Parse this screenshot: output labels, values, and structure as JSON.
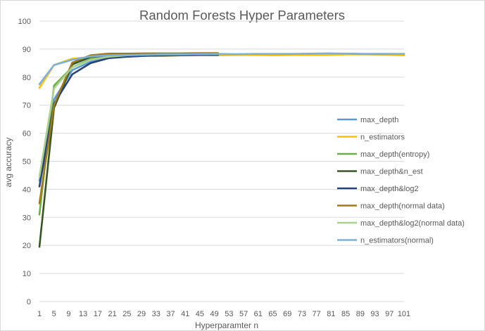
{
  "chart_data": {
    "type": "line",
    "title": "Random Forests Hyper Parameters",
    "xlabel": "Hyperparamter n",
    "ylabel": "avg accuracy",
    "ylim": [
      0,
      100
    ],
    "yticks": [
      0,
      10,
      20,
      30,
      40,
      50,
      60,
      70,
      80,
      90,
      100
    ],
    "x_tick_labels": [
      "1",
      "5",
      "9",
      "13",
      "17",
      "21",
      "25",
      "29",
      "33",
      "37",
      "41",
      "45",
      "49",
      "53",
      "57",
      "61",
      "65",
      "69",
      "73",
      "77",
      "81",
      "85",
      "89",
      "93",
      "97",
      "101"
    ],
    "grid": "horizontal",
    "legend_position": "right",
    "series": [
      {
        "name": "max_depth",
        "color": "#5b9bd5",
        "x": [
          1,
          5,
          10,
          15,
          20,
          25,
          30,
          35,
          40,
          45,
          50,
          55,
          60,
          65,
          70,
          75,
          80,
          85,
          90,
          95,
          101
        ],
        "y": [
          43,
          72,
          82.5,
          85.5,
          86.8,
          87.3,
          87.6,
          87.8,
          87.9,
          88.0,
          88.0,
          88.1,
          88.1,
          88.2,
          88.2,
          88.3,
          88.4,
          88.4,
          88.3,
          88.3,
          88.3
        ]
      },
      {
        "name": "n_estimators",
        "color": "#ffc000",
        "x": [
          1,
          5,
          10,
          15,
          20,
          25,
          30,
          35,
          40,
          45,
          50,
          55,
          60,
          65,
          70,
          75,
          80,
          85,
          90,
          95,
          101
        ],
        "y": [
          76.2,
          84.3,
          86.6,
          87.2,
          87.4,
          87.6,
          87.7,
          87.6,
          87.8,
          87.9,
          87.8,
          87.9,
          87.9,
          87.8,
          87.9,
          87.9,
          87.9,
          88.1,
          88.1,
          88.0,
          87.8
        ]
      },
      {
        "name": "max_depth(entropy)",
        "color": "#70ad47",
        "x": [
          1,
          5,
          10,
          15,
          20,
          25,
          30,
          35,
          40,
          45,
          50
        ],
        "y": [
          31,
          77,
          83.5,
          86.5,
          87.6,
          87.9,
          88.0,
          88.1,
          88.1,
          88.2,
          88.2
        ]
      },
      {
        "name": "max_depth&n_est",
        "color": "#375623",
        "x": [
          1,
          5,
          10,
          15,
          20,
          25,
          30,
          35,
          40,
          45,
          50
        ],
        "y": [
          19.5,
          69,
          84.5,
          87.2,
          87.8,
          88.0,
          88.1,
          88.1,
          88.2,
          88.2,
          88.2
        ]
      },
      {
        "name": "max_depth&log2",
        "color": "#264478",
        "x": [
          1,
          5,
          10,
          15,
          20,
          25,
          30,
          35,
          40,
          45,
          50
        ],
        "y": [
          41,
          70.5,
          81,
          85,
          86.8,
          87.3,
          87.6,
          87.7,
          87.8,
          87.9,
          87.9
        ]
      },
      {
        "name": "max_depth(normal data)",
        "color": "#9e7b1a",
        "x": [
          1,
          5,
          10,
          15,
          20,
          25,
          30,
          35,
          40,
          45,
          50
        ],
        "y": [
          35,
          70,
          85.2,
          87.8,
          88.4,
          88.4,
          88.5,
          88.5,
          88.5,
          88.6,
          88.6
        ]
      },
      {
        "name": "max_depth&log2(normal data)",
        "color": "#a9d18e",
        "x": [
          1,
          5,
          10,
          15,
          20,
          25,
          30,
          35,
          40,
          45,
          50
        ],
        "y": [
          44.5,
          76,
          83.5,
          86.2,
          87.3,
          87.8,
          88.0,
          88.1,
          88.1,
          88.2,
          88.2
        ]
      },
      {
        "name": "n_estimators(normal)",
        "color": "#7eb0dc",
        "x": [
          1,
          5,
          10,
          15,
          20,
          25,
          30,
          35,
          40,
          45,
          50,
          55,
          60,
          65,
          70,
          75,
          80,
          85,
          90,
          95,
          101
        ],
        "y": [
          77.5,
          84.3,
          86.2,
          87.4,
          87.8,
          87.9,
          88.0,
          88.1,
          88.1,
          88.2,
          88.3,
          88.2,
          88.3,
          88.3,
          88.3,
          88.4,
          88.5,
          88.4,
          88.2,
          88.2,
          88.3
        ]
      }
    ]
  }
}
